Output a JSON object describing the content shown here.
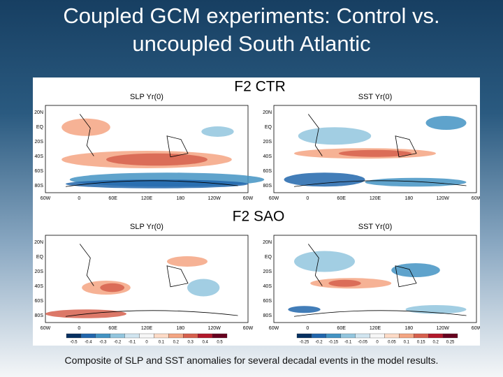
{
  "title_lines": [
    "Coupled GCM experiments: Control vs.",
    "uncoupled South Atlantic"
  ],
  "figure": {
    "panels": [
      "F2 CTR",
      "F2 SAO"
    ],
    "map_titles": [
      "SLP  Yr(0)",
      "SST  Yr(0)"
    ],
    "lat_labels": [
      "20N",
      "EQ",
      "20S",
      "40S",
      "60S",
      "80S"
    ],
    "lon_labels": [
      "60W",
      "0",
      "60E",
      "120E",
      "180",
      "120W",
      "60W"
    ],
    "colorbars": [
      [
        "-0.5",
        "-0.4",
        "-0.3",
        "-0.2",
        "-0.1",
        "0",
        "0.1",
        "0.2",
        "0.3",
        "0.4",
        "0.5"
      ],
      [
        "-0.25",
        "-0.2",
        "-0.15",
        "-0.1",
        "-0.05",
        "0",
        "0.05",
        "0.1",
        "0.15",
        "0.2",
        "0.25"
      ]
    ]
  },
  "caption": "Composite of SLP and SST anomalies for several decadal events in the model results."
}
